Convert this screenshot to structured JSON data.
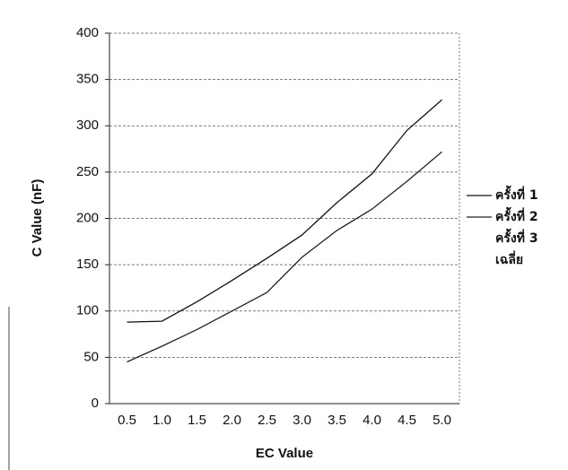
{
  "chart_data": {
    "type": "line",
    "x_label": "EC Value",
    "y_label": "C Value (nF)",
    "categories": [
      "0.5",
      "1.0",
      "1.5",
      "2.0",
      "2.5",
      "3.0",
      "3.5",
      "4.0",
      "4.5",
      "5.0"
    ],
    "series": [
      {
        "name": "ครั้งที่ 1",
        "color": "#111111",
        "values": [
          88,
          89,
          110,
          133,
          157,
          182,
          217,
          248,
          295,
          328
        ]
      },
      {
        "name": "ครั้งที่ 2",
        "color": "#222222",
        "values": [
          45,
          62,
          80,
          100,
          120,
          158,
          187,
          210,
          240,
          272
        ]
      },
      {
        "name": "ครั้งที่ 3",
        "color": "#333333",
        "values": [
          null,
          null,
          null,
          null,
          null,
          null,
          null,
          null,
          null,
          null
        ]
      },
      {
        "name": "เฉลี่ย",
        "color": "#444444",
        "values": [
          null,
          null,
          null,
          null,
          null,
          null,
          null,
          null,
          null,
          null
        ]
      }
    ],
    "ylim": [
      0,
      400
    ],
    "yticks": [
      0,
      50,
      100,
      150,
      200,
      250,
      300,
      350,
      400
    ],
    "grid": true
  }
}
